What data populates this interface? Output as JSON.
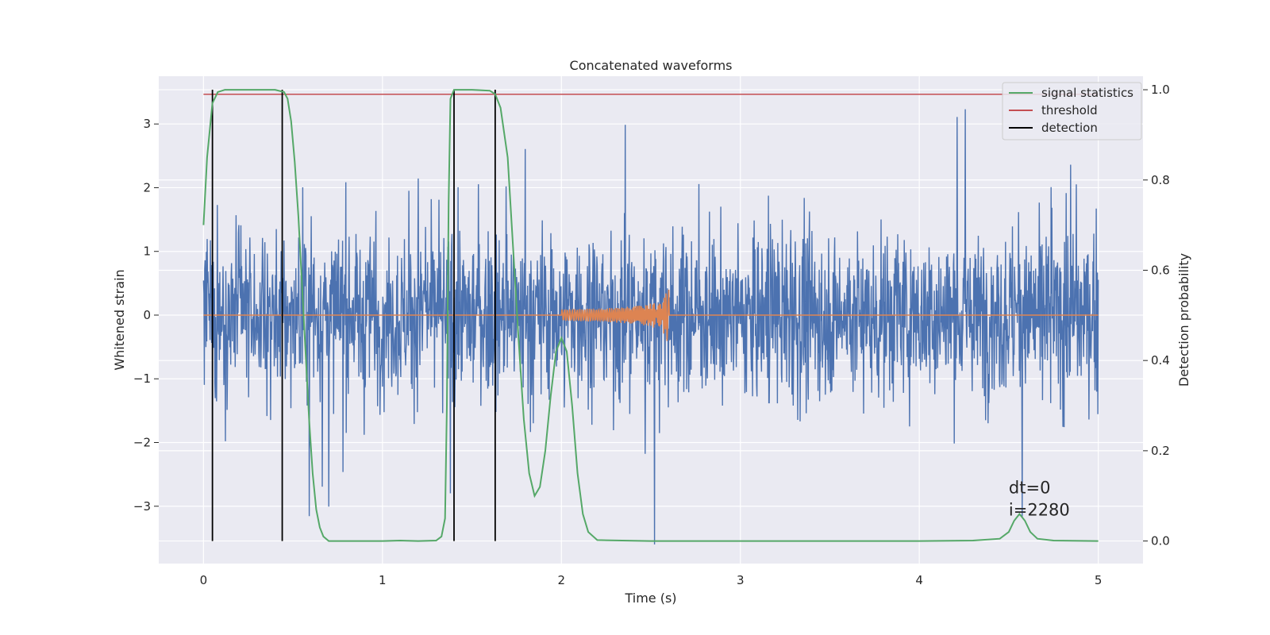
{
  "chart_data": {
    "type": "line",
    "title": "Concatenated waveforms",
    "xlabel": "Time (s)",
    "ylabel": "Whitened strain",
    "y2label": "Detection probability",
    "xlim": [
      -0.25,
      5.25
    ],
    "ylim": [
      -3.9,
      3.75
    ],
    "y2lim": [
      -0.05,
      1.03
    ],
    "xticks": [
      0,
      1,
      2,
      3,
      4,
      5
    ],
    "yticks": [
      -3,
      -2,
      -1,
      0,
      1,
      2,
      3
    ],
    "y2ticks": [
      0.0,
      0.2,
      0.4,
      0.6,
      0.8,
      1.0
    ],
    "xtick_labels": [
      "0",
      "1",
      "2",
      "3",
      "4",
      "5"
    ],
    "ytick_labels": [
      "−3",
      "−2",
      "−1",
      "0",
      "1",
      "2",
      "3"
    ],
    "y2tick_labels": [
      "0.0",
      "0.2",
      "0.4",
      "0.6",
      "0.8",
      "1.0"
    ],
    "grid": true,
    "legend_position": "top-right",
    "series": [
      {
        "name": "signal statistics",
        "axis": "right",
        "color": "#55a868",
        "x": [
          0.0,
          0.02,
          0.05,
          0.08,
          0.12,
          0.2,
          0.3,
          0.4,
          0.45,
          0.47,
          0.49,
          0.51,
          0.53,
          0.55,
          0.57,
          0.59,
          0.61,
          0.63,
          0.65,
          0.67,
          0.7,
          0.8,
          1.0,
          1.1,
          1.2,
          1.3,
          1.33,
          1.35,
          1.36,
          1.37,
          1.38,
          1.4,
          1.5,
          1.6,
          1.63,
          1.66,
          1.7,
          1.73,
          1.76,
          1.79,
          1.82,
          1.85,
          1.88,
          1.91,
          1.94,
          1.97,
          2.0,
          2.03,
          2.06,
          2.09,
          2.12,
          2.15,
          2.2,
          2.5,
          3.0,
          3.5,
          4.0,
          4.3,
          4.45,
          4.5,
          4.53,
          4.56,
          4.59,
          4.62,
          4.66,
          4.75,
          5.0
        ],
        "y": [
          0.7,
          0.85,
          0.97,
          0.995,
          1.0,
          1.0,
          1.0,
          1.0,
          0.995,
          0.98,
          0.93,
          0.84,
          0.72,
          0.57,
          0.42,
          0.27,
          0.15,
          0.07,
          0.03,
          0.01,
          0.0,
          0.0,
          0.0,
          0.001,
          0.0,
          0.001,
          0.01,
          0.05,
          0.3,
          0.75,
          0.98,
          1.0,
          1.0,
          0.998,
          0.99,
          0.96,
          0.85,
          0.65,
          0.45,
          0.27,
          0.15,
          0.1,
          0.12,
          0.2,
          0.32,
          0.42,
          0.45,
          0.42,
          0.3,
          0.15,
          0.06,
          0.02,
          0.002,
          0.0,
          0.0,
          0.0,
          0.0,
          0.001,
          0.005,
          0.02,
          0.045,
          0.06,
          0.045,
          0.02,
          0.005,
          0.001,
          0.0
        ]
      },
      {
        "name": "threshold",
        "axis": "right",
        "color": "#c44e52",
        "x": [
          0,
          5
        ],
        "y": [
          0.99,
          0.99
        ]
      },
      {
        "name": "detection",
        "axis": "right",
        "color": "#000000",
        "type": "vlines",
        "x": [
          0.05,
          0.44,
          1.4,
          1.63
        ],
        "y_range": [
          0.0,
          1.0
        ]
      },
      {
        "name": "",
        "axis": "left",
        "color": "#4c72b0",
        "type": "noise",
        "x_range": [
          0,
          5
        ],
        "amplitude_range": [
          -3.6,
          3.4
        ]
      },
      {
        "name": "",
        "axis": "left",
        "color": "#dd8452",
        "type": "chirp",
        "x_range": [
          0,
          5
        ],
        "chirp_start": 2.0,
        "chirp_end": 2.6,
        "peak_amplitude": 0.6
      }
    ],
    "annotation": {
      "lines": [
        "dt=0",
        "i=2280"
      ],
      "x": 4.5,
      "y": -2.8
    }
  }
}
